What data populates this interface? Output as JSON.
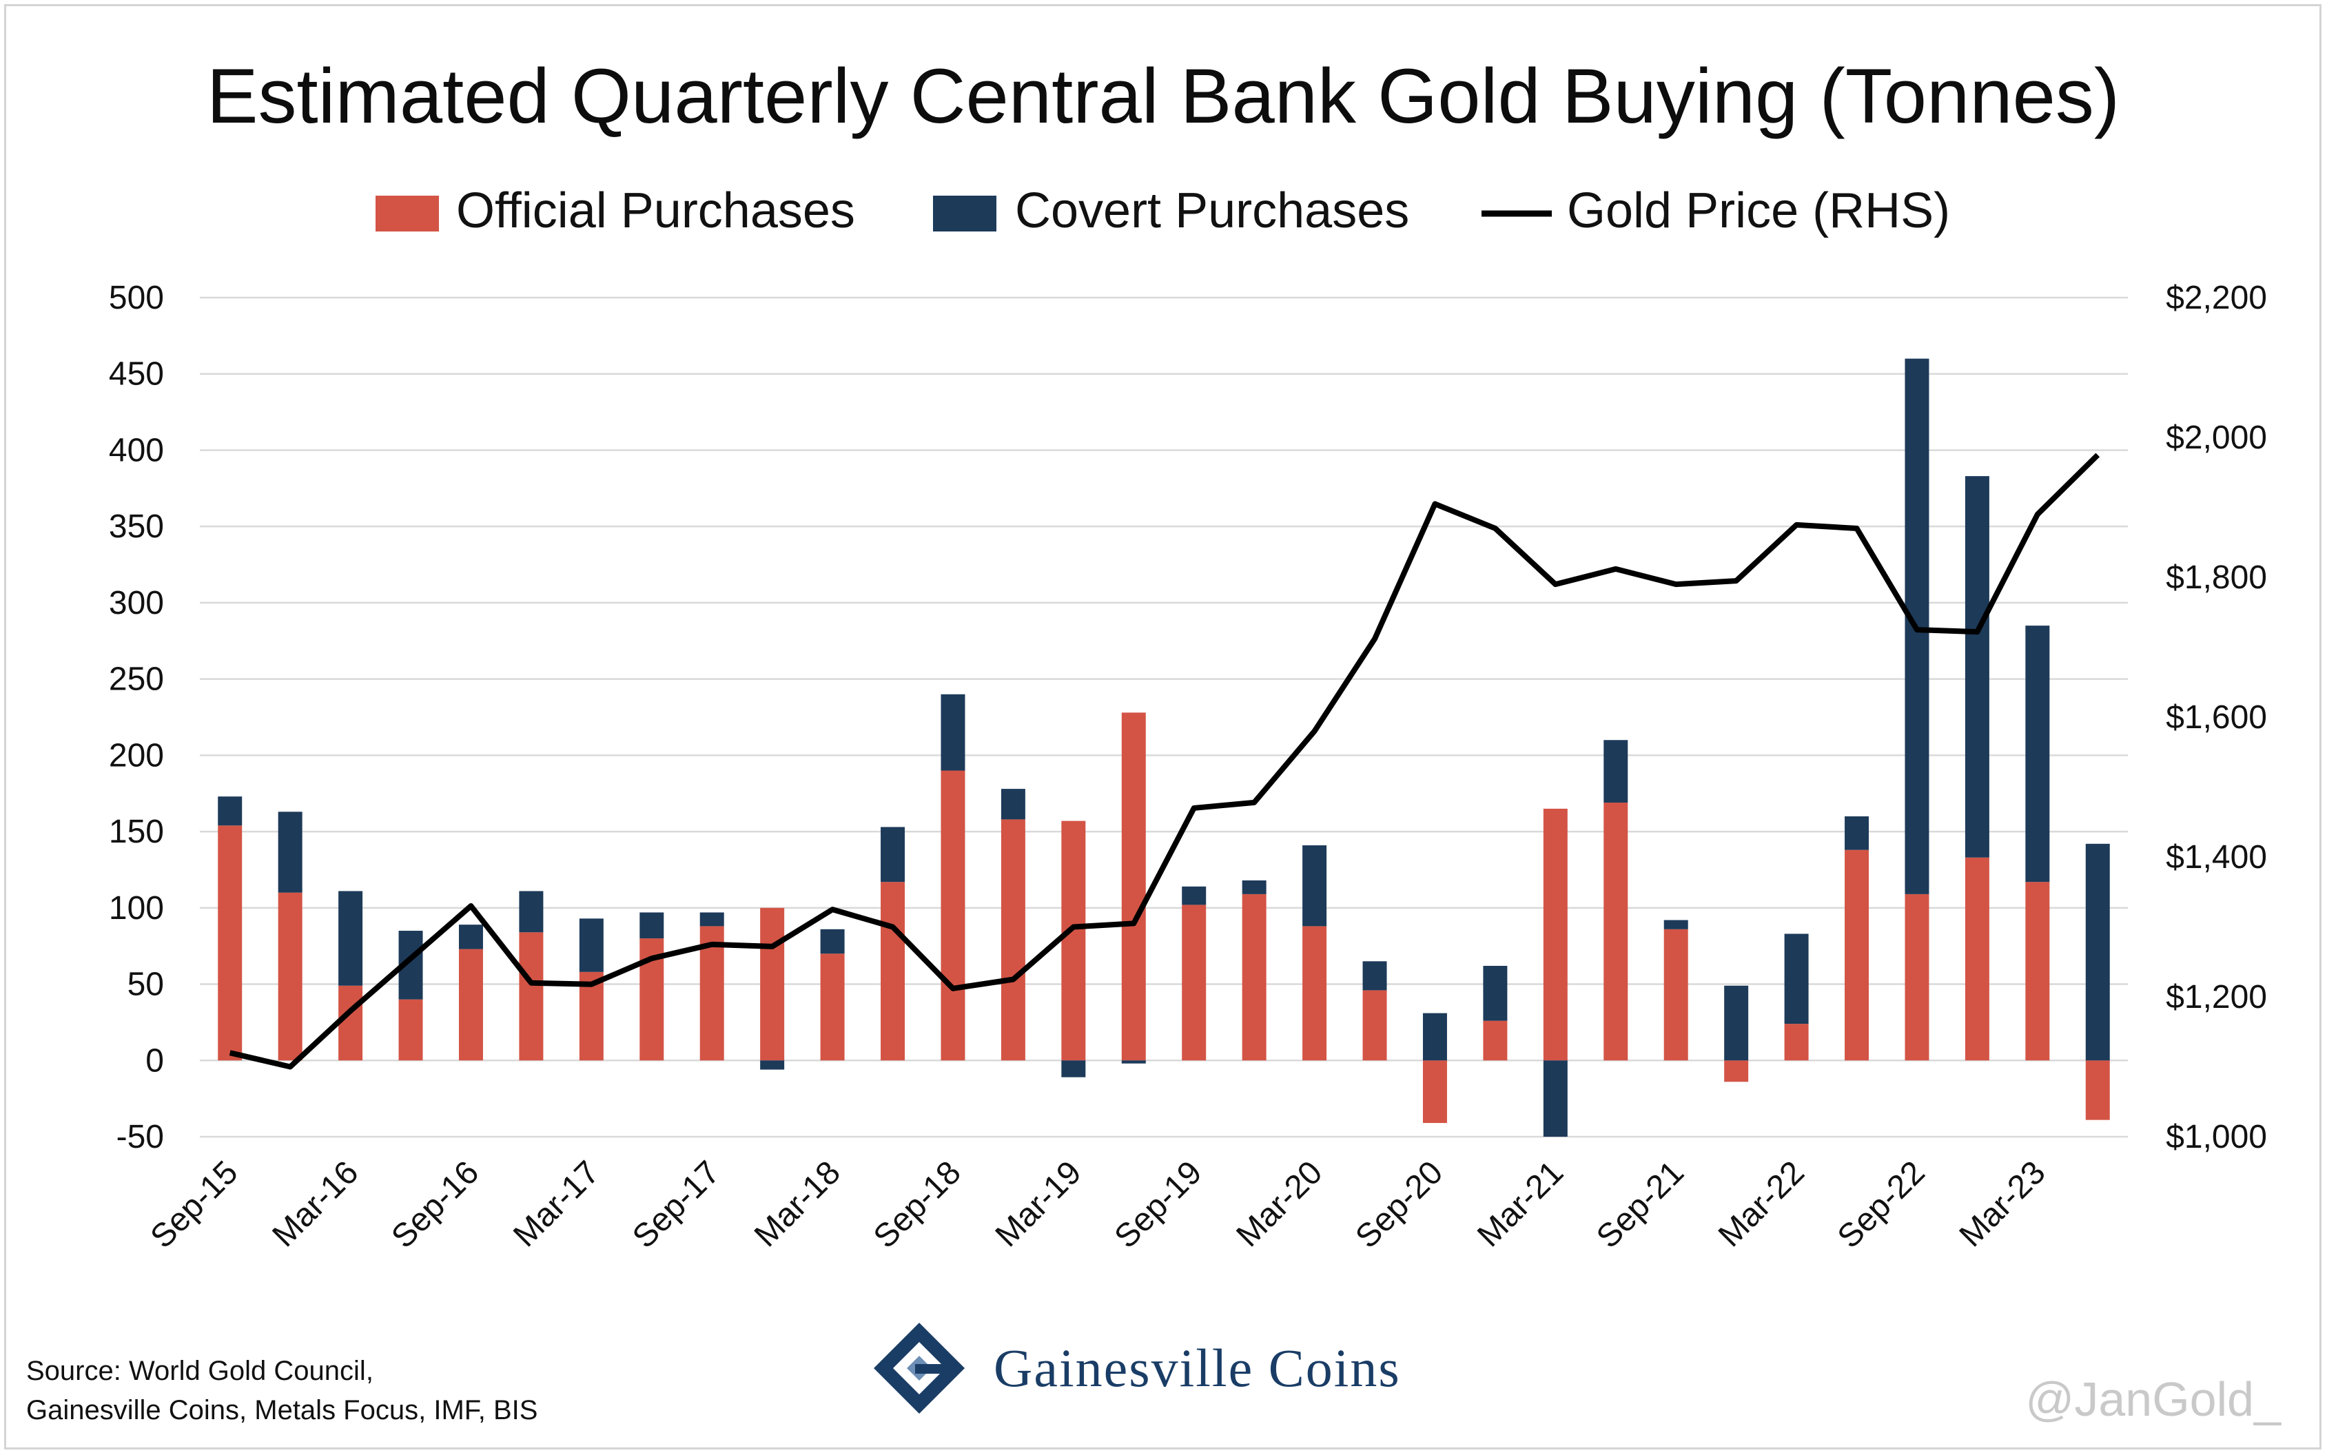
{
  "title": "Estimated Quarterly Central Bank Gold Buying (Tonnes)",
  "legend": {
    "official": "Official Purchases",
    "covert": "Covert Purchases",
    "gold": "Gold Price (RHS)"
  },
  "colors": {
    "official": "#d35445",
    "covert": "#1d3a59",
    "gold": "#000000"
  },
  "source": {
    "line1": "Source: World Gold Council,",
    "line2": "Gainesville Coins, Metals Focus, IMF, BIS"
  },
  "brand": "Gainesville Coins",
  "watermark": "@JanGold_",
  "chart_data": {
    "type": "bar",
    "stacked": true,
    "categories": [
      "Sep-15",
      "Dec-15",
      "Mar-16",
      "Jun-16",
      "Sep-16",
      "Dec-16",
      "Mar-17",
      "Jun-17",
      "Sep-17",
      "Dec-17",
      "Mar-18",
      "Jun-18",
      "Sep-18",
      "Dec-18",
      "Mar-19",
      "Jun-19",
      "Sep-19",
      "Dec-19",
      "Mar-20",
      "Jun-20",
      "Sep-20",
      "Dec-20",
      "Mar-21",
      "Jun-21",
      "Sep-21",
      "Dec-21",
      "Mar-22",
      "Jun-22",
      "Sep-22",
      "Dec-22",
      "Mar-23",
      "Jun-23"
    ],
    "x_tick_labels": [
      "Sep-15",
      "Mar-16",
      "Sep-16",
      "Mar-17",
      "Sep-17",
      "Mar-18",
      "Sep-18",
      "Mar-19",
      "Sep-19",
      "Mar-20",
      "Sep-20",
      "Mar-21",
      "Sep-21",
      "Mar-22",
      "Sep-22",
      "Mar-23"
    ],
    "series": [
      {
        "name": "Official Purchases",
        "type": "bar",
        "values": [
          154,
          110,
          49,
          40,
          73,
          84,
          58,
          80,
          88,
          100,
          70,
          117,
          190,
          158,
          157,
          228,
          102,
          109,
          88,
          46,
          -41,
          26,
          165,
          169,
          86,
          -14,
          24,
          138,
          109,
          133,
          117,
          -39
        ]
      },
      {
        "name": "Covert Purchases",
        "type": "bar",
        "values": [
          19,
          53,
          62,
          45,
          16,
          27,
          35,
          17,
          9,
          -6,
          16,
          36,
          50,
          20,
          -11,
          -2,
          12,
          9,
          53,
          19,
          31,
          36,
          -50,
          41,
          6,
          49,
          59,
          22,
          351,
          250,
          168,
          142
        ]
      },
      {
        "name": "Gold Price (RHS)",
        "type": "line",
        "axis": "right",
        "values": [
          1120,
          1100,
          1180,
          1255,
          1330,
          1220,
          1218,
          1255,
          1275,
          1272,
          1325,
          1300,
          1212,
          1225,
          1300,
          1305,
          1470,
          1478,
          1580,
          1712,
          1905,
          1870,
          1790,
          1812,
          1790,
          1795,
          1875,
          1870,
          1725,
          1722,
          1890,
          1975
        ]
      }
    ],
    "ylim": [
      -50,
      500
    ],
    "yticks": [
      -50,
      0,
      50,
      100,
      150,
      200,
      250,
      300,
      350,
      400,
      450,
      500
    ],
    "y2lim": [
      1000,
      2200
    ],
    "y2ticks": [
      "$1,000",
      "$1,200",
      "$1,400",
      "$1,600",
      "$1,800",
      "$2,000",
      "$2,200"
    ],
    "grid": true,
    "legend_position": "top"
  }
}
